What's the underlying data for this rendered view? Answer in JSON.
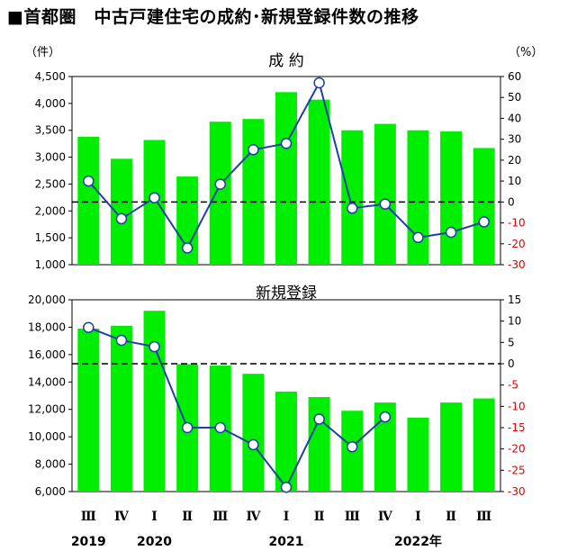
{
  "title": "■首都圏　中古戸建住宅の成約･新規登録件数の推移",
  "chart_data": [
    {
      "type": "bar+line",
      "title": "成 約",
      "left_unit": "（件）",
      "right_unit": "（%）",
      "categories": [
        "Ⅲ",
        "Ⅳ",
        "Ⅰ",
        "Ⅱ",
        "Ⅲ",
        "Ⅳ",
        "Ⅰ",
        "Ⅱ",
        "Ⅲ",
        "Ⅳ",
        "Ⅰ",
        "Ⅱ",
        "Ⅲ"
      ],
      "bars": [
        3380,
        2970,
        3320,
        2640,
        3660,
        3710,
        4210,
        4070,
        3500,
        3620,
        3500,
        3480,
        3170
      ],
      "line": [
        10,
        -8,
        2,
        -22,
        8.5,
        25,
        28,
        57,
        -3,
        -1,
        -17,
        -14.5,
        -9.5
      ],
      "left_ylim": [
        1000,
        4500
      ],
      "left_ticks": [
        "1,000",
        "1,500",
        "2,000",
        "2,500",
        "3,000",
        "3,500",
        "4,000",
        "4,500"
      ],
      "right_ylim": [
        -30,
        60
      ],
      "right_ticks": [
        "-30",
        "-20",
        "-10",
        "0",
        "10",
        "20",
        "30",
        "40",
        "50",
        "60"
      ],
      "bar_color": "#00ee00",
      "line_color": "#1f3fa6"
    },
    {
      "type": "bar+line",
      "title": "新規登録",
      "categories": [
        "Ⅲ",
        "Ⅳ",
        "Ⅰ",
        "Ⅱ",
        "Ⅲ",
        "Ⅳ",
        "Ⅰ",
        "Ⅱ",
        "Ⅲ",
        "Ⅳ",
        "Ⅰ",
        "Ⅱ",
        "Ⅲ"
      ],
      "bars": [
        17900,
        18100,
        19200,
        15300,
        15200,
        14600,
        13300,
        12900,
        11900,
        12500,
        11400,
        12500,
        12800
      ],
      "line": [
        8.5,
        5.5,
        4,
        -15,
        -15,
        -19,
        -29,
        -13,
        -19.5,
        -12.5,
        null,
        null,
        null
      ],
      "left_ylim": [
        6000,
        20000
      ],
      "left_ticks": [
        "6,000",
        "8,000",
        "10,000",
        "12,000",
        "14,000",
        "16,000",
        "18,000",
        "20,000"
      ],
      "right_ylim": [
        -30,
        15
      ],
      "right_ticks": [
        "-30",
        "-25",
        "-20",
        "-15",
        "-10",
        "-5",
        "0",
        "5",
        "10",
        "15"
      ],
      "bar_color": "#00ee00",
      "line_color": "#1f3fa6"
    }
  ],
  "year_labels": [
    {
      "label": "2019",
      "index": 0
    },
    {
      "label": "2020",
      "index": 2
    },
    {
      "label": "2021",
      "index": 6
    },
    {
      "label": "2022年",
      "index": 10
    }
  ]
}
